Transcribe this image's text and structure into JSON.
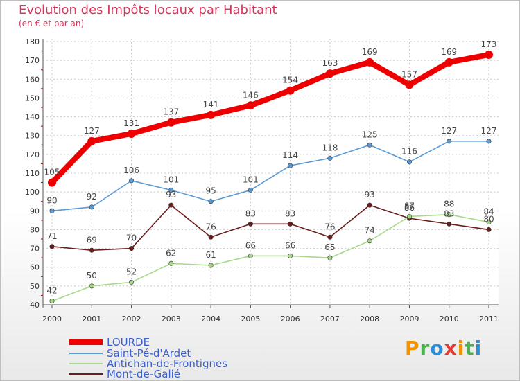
{
  "title": "Evolution des Impôts locaux par Habitant",
  "subtitle": "(en € et par an)",
  "chart_data": {
    "type": "line",
    "title": "Evolution des Impôts locaux par Habitant",
    "subtitle": "(en € et par an)",
    "xlabel": "",
    "ylabel": "",
    "ylim": [
      40,
      180
    ],
    "yticks": [
      40,
      50,
      60,
      70,
      80,
      90,
      100,
      110,
      120,
      130,
      140,
      150,
      160,
      170,
      180
    ],
    "categories": [
      "2000",
      "2001",
      "2002",
      "2003",
      "2004",
      "2005",
      "2006",
      "2007",
      "2008",
      "2009",
      "2010",
      "2011"
    ],
    "grid": true,
    "legend": "bottom-left",
    "series": [
      {
        "name": "LOURDE",
        "color": "#ee0000",
        "values": [
          105,
          127,
          131,
          137,
          141,
          146,
          154,
          163,
          169,
          157,
          169,
          173
        ]
      },
      {
        "name": "Saint-Pé-d'Ardet",
        "color": "#5b9bd5",
        "values": [
          90,
          92,
          106,
          101,
          95,
          101,
          114,
          118,
          125,
          116,
          127,
          127
        ]
      },
      {
        "name": "Antichan-de-Frontignes",
        "color": "#a8d98a",
        "values": [
          42,
          50,
          52,
          62,
          61,
          66,
          66,
          65,
          74,
          87,
          88,
          84
        ]
      },
      {
        "name": "Mont-de-Galié",
        "color": "#6b1c1c",
        "values": [
          71,
          69,
          70,
          93,
          76,
          83,
          83,
          76,
          93,
          86,
          83,
          80
        ]
      }
    ]
  },
  "legend": [
    {
      "label": "LOURDE",
      "color": "#ee0000"
    },
    {
      "label": "Saint-Pé-d'Ardet",
      "color": "#5b9bd5"
    },
    {
      "label": "Antichan-de-Frontignes",
      "color": "#a8d98a"
    },
    {
      "label": "Mont-de-Galié",
      "color": "#6b1c1c"
    }
  ],
  "logo": {
    "text": "Proxiti",
    "colors": [
      "#f39200",
      "#4caf50",
      "#2a8fd6",
      "#e53935",
      "#f39200",
      "#4caf50",
      "#2a8fd6"
    ]
  }
}
